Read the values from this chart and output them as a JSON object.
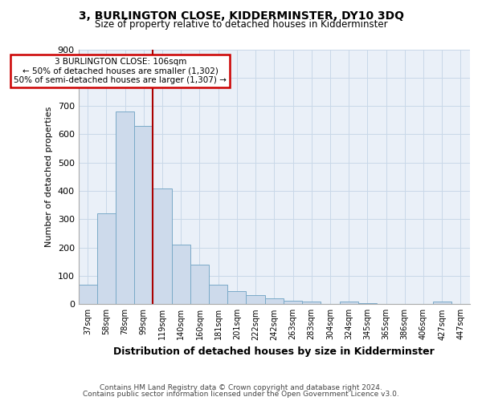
{
  "title": "3, BURLINGTON CLOSE, KIDDERMINSTER, DY10 3DQ",
  "subtitle": "Size of property relative to detached houses in Kidderminster",
  "xlabel": "Distribution of detached houses by size in Kidderminster",
  "ylabel": "Number of detached properties",
  "footnote1": "Contains HM Land Registry data © Crown copyright and database right 2024.",
  "footnote2": "Contains public sector information licensed under the Open Government Licence v3.0.",
  "bar_labels": [
    "37sqm",
    "58sqm",
    "78sqm",
    "99sqm",
    "119sqm",
    "140sqm",
    "160sqm",
    "181sqm",
    "201sqm",
    "222sqm",
    "242sqm",
    "263sqm",
    "283sqm",
    "304sqm",
    "324sqm",
    "345sqm",
    "365sqm",
    "386sqm",
    "406sqm",
    "427sqm",
    "447sqm"
  ],
  "bar_values": [
    70,
    320,
    680,
    630,
    410,
    210,
    140,
    70,
    47,
    33,
    22,
    12,
    8,
    0,
    8,
    5,
    0,
    0,
    0,
    8,
    0
  ],
  "bar_color": "#cddaeb",
  "bar_edge_color": "#7aaac8",
  "vline_x": 3.5,
  "vline_color": "#aa0000",
  "annotation_text": "3 BURLINGTON CLOSE: 106sqm\n← 50% of detached houses are smaller (1,302)\n50% of semi-detached houses are larger (1,307) →",
  "annotation_box_color": "#cc0000",
  "ylim": [
    0,
    900
  ],
  "yticks": [
    0,
    100,
    200,
    300,
    400,
    500,
    600,
    700,
    800,
    900
  ],
  "grid_color": "#c8d8e8",
  "background_color": "#eaf0f8"
}
